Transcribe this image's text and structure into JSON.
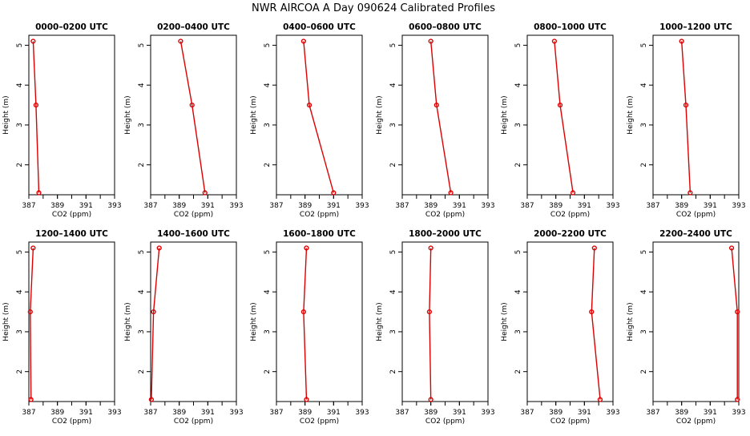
{
  "page": {
    "title": "NWR AIRCOA A  Day 090624  Calibrated Profiles"
  },
  "colors": {
    "series": "#dd0000",
    "axis": "#000000"
  },
  "chart_data": [
    {
      "type": "line",
      "title": "0000–0200 UTC",
      "xlabel": "CO2 (ppm)",
      "ylabel": "Height (m)",
      "xlim": [
        387,
        393
      ],
      "ylim": [
        1.25,
        5.25
      ],
      "xticks": [
        "387",
        "389",
        "391",
        "393"
      ],
      "yticks": [
        "2",
        "3",
        "4",
        "5"
      ],
      "grid": false,
      "x": [
        387.3,
        387.5,
        387.7
      ],
      "y": [
        5.1,
        3.5,
        1.3
      ]
    },
    {
      "type": "line",
      "title": "0200–0400 UTC",
      "xlabel": "CO2 (ppm)",
      "ylabel": "Height (m)",
      "xlim": [
        387,
        393
      ],
      "ylim": [
        1.25,
        5.25
      ],
      "xticks": [
        "387",
        "389",
        "391",
        "393"
      ],
      "yticks": [
        "2",
        "3",
        "4",
        "5"
      ],
      "grid": false,
      "x": [
        389.1,
        389.9,
        390.8
      ],
      "y": [
        5.1,
        3.5,
        1.3
      ]
    },
    {
      "type": "line",
      "title": "0400–0600 UTC",
      "xlabel": "CO2 (ppm)",
      "ylabel": "Height (m)",
      "xlim": [
        387,
        393
      ],
      "ylim": [
        1.25,
        5.25
      ],
      "xticks": [
        "387",
        "389",
        "391",
        "393"
      ],
      "yticks": [
        "2",
        "3",
        "4",
        "5"
      ],
      "grid": false,
      "x": [
        388.9,
        389.3,
        391.0
      ],
      "y": [
        5.1,
        3.5,
        1.3
      ]
    },
    {
      "type": "line",
      "title": "0600–0800 UTC",
      "xlabel": "CO2 (ppm)",
      "ylabel": "Height (m)",
      "xlim": [
        387,
        393
      ],
      "ylim": [
        1.25,
        5.25
      ],
      "xticks": [
        "387",
        "389",
        "391",
        "393"
      ],
      "yticks": [
        "2",
        "3",
        "4",
        "5"
      ],
      "grid": false,
      "x": [
        389.0,
        389.4,
        390.4
      ],
      "y": [
        5.1,
        3.5,
        1.3
      ]
    },
    {
      "type": "line",
      "title": "0800–1000 UTC",
      "xlabel": "CO2 (ppm)",
      "ylabel": "Height (m)",
      "xlim": [
        387,
        393
      ],
      "ylim": [
        1.25,
        5.25
      ],
      "xticks": [
        "387",
        "389",
        "391",
        "393"
      ],
      "yticks": [
        "2",
        "3",
        "4",
        "5"
      ],
      "grid": false,
      "x": [
        388.9,
        389.3,
        390.2
      ],
      "y": [
        5.1,
        3.5,
        1.3
      ]
    },
    {
      "type": "line",
      "title": "1000–1200 UTC",
      "xlabel": "CO2 (ppm)",
      "ylabel": "Height (m)",
      "xlim": [
        387,
        393
      ],
      "ylim": [
        1.25,
        5.25
      ],
      "xticks": [
        "387",
        "389",
        "391",
        "393"
      ],
      "yticks": [
        "2",
        "3",
        "4",
        "5"
      ],
      "grid": false,
      "x": [
        389.0,
        389.3,
        389.6
      ],
      "y": [
        5.1,
        3.5,
        1.3
      ]
    },
    {
      "type": "line",
      "title": "1200–1400 UTC",
      "xlabel": "CO2 (ppm)",
      "ylabel": "Height (m)",
      "xlim": [
        387,
        393
      ],
      "ylim": [
        1.25,
        5.25
      ],
      "xticks": [
        "387",
        "389",
        "391",
        "393"
      ],
      "yticks": [
        "2",
        "3",
        "4",
        "5"
      ],
      "grid": false,
      "x": [
        387.3,
        387.1,
        387.15
      ],
      "y": [
        5.1,
        3.5,
        1.3
      ]
    },
    {
      "type": "line",
      "title": "1400–1600 UTC",
      "xlabel": "CO2 (ppm)",
      "ylabel": "Height (m)",
      "xlim": [
        387,
        393
      ],
      "ylim": [
        1.25,
        5.25
      ],
      "xticks": [
        "387",
        "389",
        "391",
        "393"
      ],
      "yticks": [
        "2",
        "3",
        "4",
        "5"
      ],
      "grid": false,
      "x": [
        387.6,
        387.2,
        387.05
      ],
      "y": [
        5.1,
        3.5,
        1.3
      ]
    },
    {
      "type": "line",
      "title": "1600–1800 UTC",
      "xlabel": "CO2 (ppm)",
      "ylabel": "Height (m)",
      "xlim": [
        387,
        393
      ],
      "ylim": [
        1.25,
        5.25
      ],
      "xticks": [
        "387",
        "389",
        "391",
        "393"
      ],
      "yticks": [
        "2",
        "3",
        "4",
        "5"
      ],
      "grid": false,
      "x": [
        389.1,
        388.9,
        389.1
      ],
      "y": [
        5.1,
        3.5,
        1.3
      ]
    },
    {
      "type": "line",
      "title": "1800–2000 UTC",
      "xlabel": "CO2 (ppm)",
      "ylabel": "Height (m)",
      "xlim": [
        387,
        393
      ],
      "ylim": [
        1.25,
        5.25
      ],
      "xticks": [
        "387",
        "389",
        "391",
        "393"
      ],
      "yticks": [
        "2",
        "3",
        "4",
        "5"
      ],
      "grid": false,
      "x": [
        389.0,
        388.9,
        389.0
      ],
      "y": [
        5.1,
        3.5,
        1.3
      ]
    },
    {
      "type": "line",
      "title": "2000–2200 UTC",
      "xlabel": "CO2 (ppm)",
      "ylabel": "Height (m)",
      "xlim": [
        387,
        393
      ],
      "ylim": [
        1.25,
        5.25
      ],
      "xticks": [
        "387",
        "389",
        "391",
        "393"
      ],
      "yticks": [
        "2",
        "3",
        "4",
        "5"
      ],
      "grid": false,
      "x": [
        391.7,
        391.5,
        392.1
      ],
      "y": [
        5.1,
        3.5,
        1.3
      ]
    },
    {
      "type": "line",
      "title": "2200–2400 UTC",
      "xlabel": "CO2 (ppm)",
      "ylabel": "Height (m)",
      "xlim": [
        387,
        393
      ],
      "ylim": [
        1.25,
        5.25
      ],
      "xticks": [
        "387",
        "389",
        "391",
        "393"
      ],
      "yticks": [
        "2",
        "3",
        "4",
        "5"
      ],
      "grid": false,
      "x": [
        392.5,
        392.9,
        392.9
      ],
      "y": [
        5.1,
        3.5,
        1.3
      ]
    }
  ]
}
